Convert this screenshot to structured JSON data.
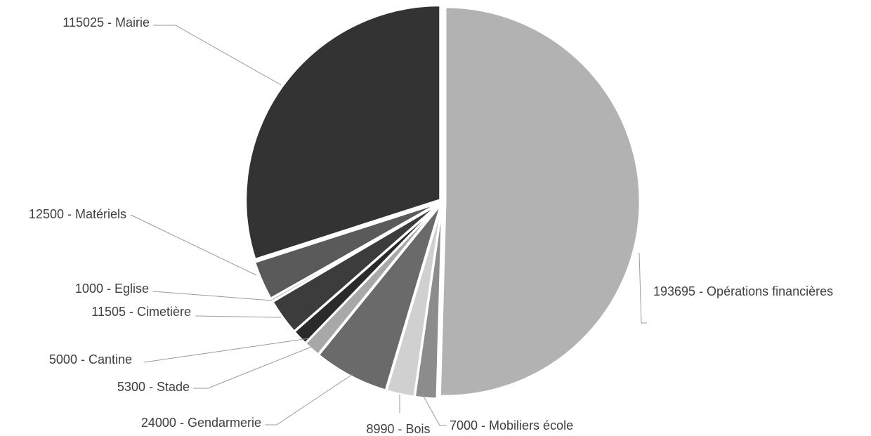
{
  "chart_data": {
    "type": "pie",
    "start_angle_deg": 0,
    "direction": "clockwise",
    "slices": [
      {
        "value": 193695,
        "name": "Opérations financières",
        "label": "193695 - Opérations financières",
        "color": "#b2b2b2",
        "label_color": "#404040"
      },
      {
        "value": 7000,
        "name": "Mobiliers école",
        "label": "7000 - Mobiliers école",
        "color": "#8c8c8c",
        "label_color": "#404040"
      },
      {
        "value": 8990,
        "name": "Bois",
        "label": "8990 - Bois",
        "color": "#d0d0d0",
        "label_color": "#404040"
      },
      {
        "value": 24000,
        "name": "Gendarmerie",
        "label": "24000 - Gendarmerie",
        "color": "#6a6a6a",
        "label_color": "#404040"
      },
      {
        "value": 5300,
        "name": "Stade",
        "label": "5300 - Stade",
        "color": "#a8a8a8",
        "label_color": "#404040"
      },
      {
        "value": 5000,
        "name": "Cantine",
        "label": "5000 - Cantine",
        "color": "#2a2a2a",
        "label_color": "#9a9a9a"
      },
      {
        "value": 11505,
        "name": "Cimetière",
        "label": "11505 - Cimetière",
        "color": "#3c3c3c",
        "label_color": "#404040"
      },
      {
        "value": 1000,
        "name": "Eglise",
        "label": "1000 - Eglise",
        "color": "#c4c4c4",
        "label_color": "#404040"
      },
      {
        "value": 12500,
        "name": "Matériels",
        "label": "12500 - Matériels",
        "color": "#5a5a5a",
        "label_color": "#404040"
      },
      {
        "value": 115025,
        "name": "Mairie",
        "label": "115025 - Mairie",
        "color": "#333333",
        "label_color": "#404040"
      }
    ]
  }
}
